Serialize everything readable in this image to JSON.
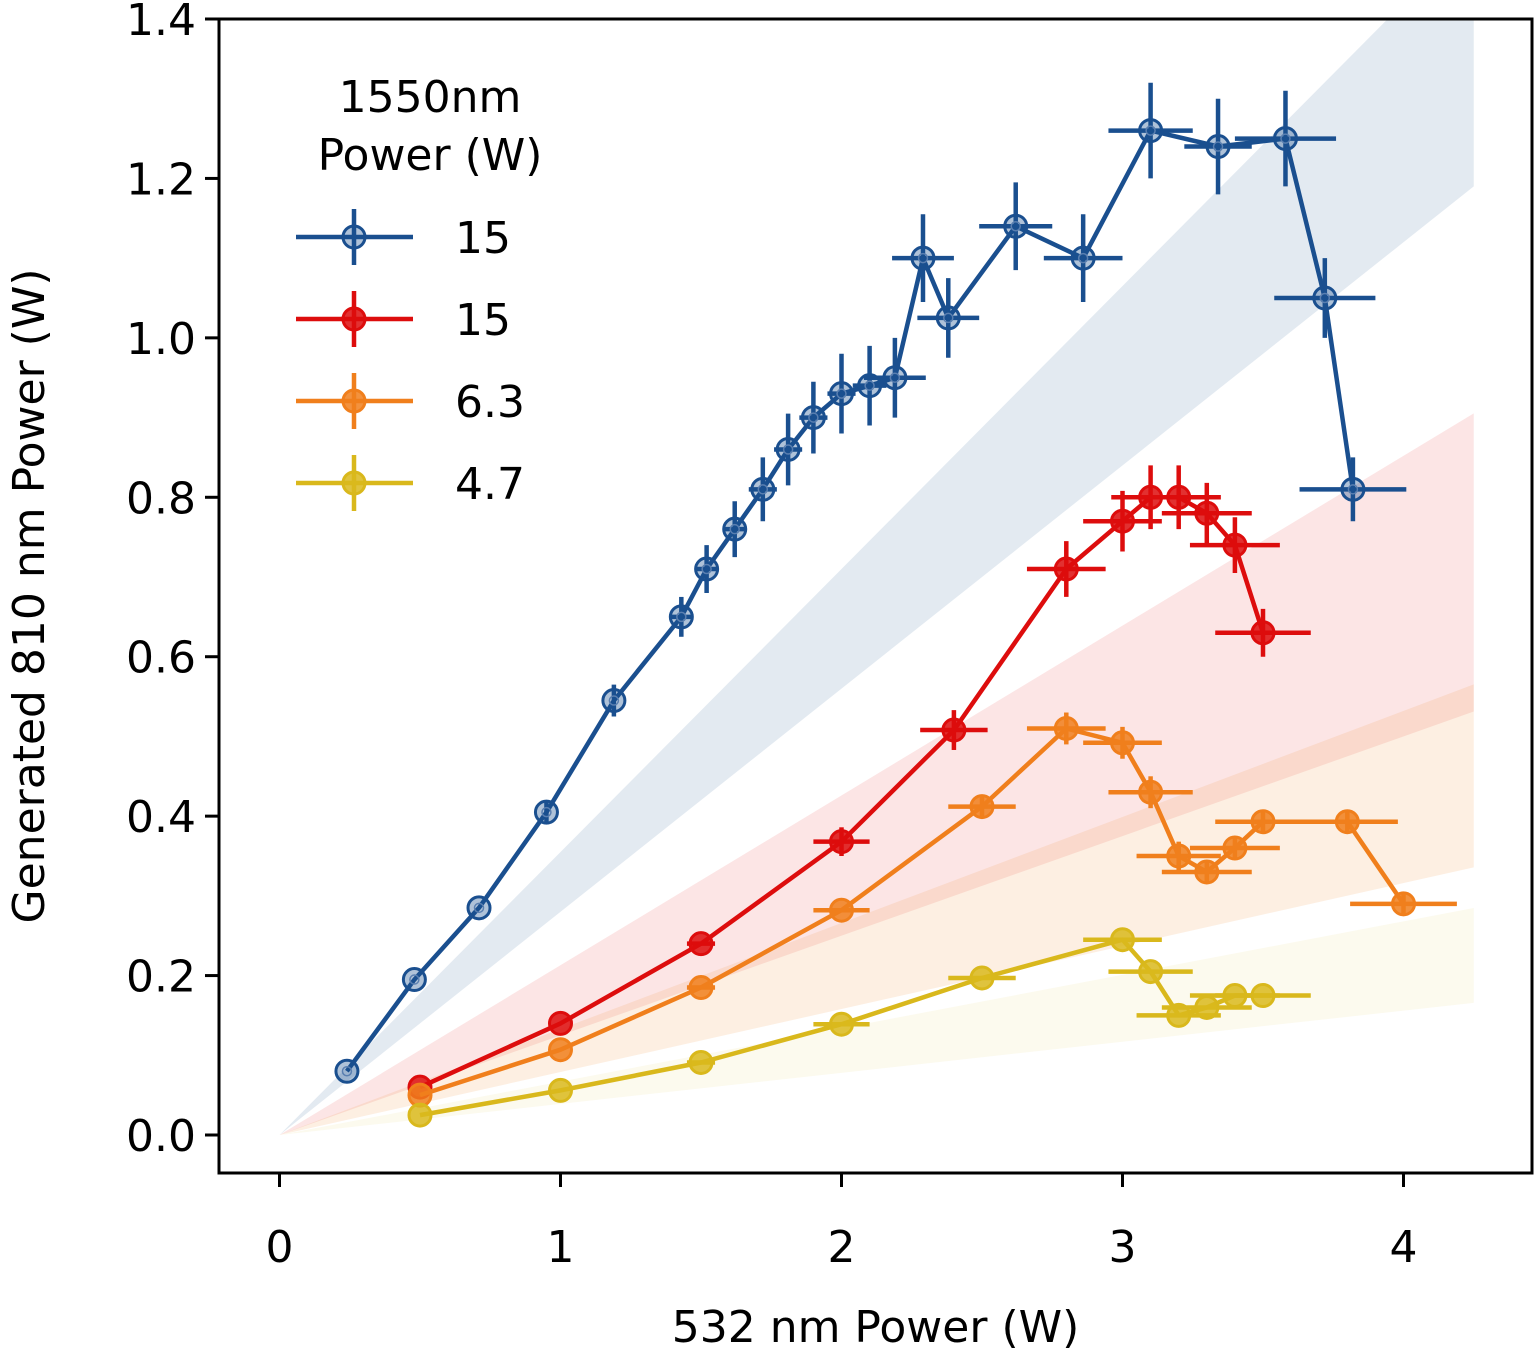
{
  "chart_data": {
    "type": "line",
    "title": "",
    "xlabel": "532 nm Power (W)",
    "ylabel": "Generated 810 nm Power (W)",
    "xlim": [
      -0.22,
      4.5
    ],
    "ylim": [
      0.0,
      1.4
    ],
    "xticks": [
      0,
      1,
      2,
      3,
      4
    ],
    "xtick_labels": [
      "0",
      "1",
      "2",
      "3",
      "4"
    ],
    "yticks": [
      0.0,
      0.2,
      0.4,
      0.6,
      0.8,
      1.0,
      1.2,
      1.4
    ],
    "ytick_labels": [
      "0.0",
      "0.2",
      "0.4",
      "0.6",
      "0.8",
      "1.0",
      "1.2",
      "1.4"
    ],
    "grid": false,
    "legend": {
      "title": "1550nm\nPower (W)",
      "placement": "top-left"
    },
    "series": [
      {
        "name": "15",
        "color": "#1a4f8f",
        "band_color": "#1a4f8f",
        "band": {
          "x_end": 4.25,
          "slope_low": 0.28,
          "slope_high": 0.355
        },
        "marker": "open",
        "points": [
          {
            "x": 0.24,
            "y": 0.08
          },
          {
            "x": 0.48,
            "y": 0.195
          },
          {
            "x": 0.71,
            "y": 0.285
          },
          {
            "x": 0.95,
            "y": 0.405,
            "yerr": 0.015
          },
          {
            "x": 1.19,
            "y": 0.545,
            "yerr": 0.02
          },
          {
            "x": 1.43,
            "y": 0.65,
            "xerr": 0.04,
            "yerr": 0.025
          },
          {
            "x": 1.52,
            "y": 0.71,
            "xerr": 0.04,
            "yerr": 0.03
          },
          {
            "x": 1.62,
            "y": 0.76,
            "xerr": 0.04,
            "yerr": 0.035
          },
          {
            "x": 1.72,
            "y": 0.81,
            "xerr": 0.05,
            "yerr": 0.04
          },
          {
            "x": 1.81,
            "y": 0.86,
            "xerr": 0.05,
            "yerr": 0.045
          },
          {
            "x": 1.9,
            "y": 0.9,
            "xerr": 0.05,
            "yerr": 0.045
          },
          {
            "x": 2.0,
            "y": 0.93,
            "xerr": 0.05,
            "yerr": 0.05
          },
          {
            "x": 2.1,
            "y": 0.94,
            "xerr": 0.06,
            "yerr": 0.05
          },
          {
            "x": 2.19,
            "y": 0.95,
            "xerr": 0.11,
            "yerr": 0.05
          },
          {
            "x": 2.29,
            "y": 1.1,
            "xerr": 0.11,
            "yerr": 0.055
          },
          {
            "x": 2.38,
            "y": 1.025,
            "xerr": 0.11,
            "yerr": 0.05
          },
          {
            "x": 2.62,
            "y": 1.14,
            "xerr": 0.13,
            "yerr": 0.055
          },
          {
            "x": 2.86,
            "y": 1.1,
            "xerr": 0.14,
            "yerr": 0.055
          },
          {
            "x": 3.1,
            "y": 1.26,
            "xerr": 0.15,
            "yerr": 0.06
          },
          {
            "x": 3.34,
            "y": 1.24,
            "xerr": 0.12,
            "yerr": 0.06
          },
          {
            "x": 3.58,
            "y": 1.25,
            "xerr": 0.18,
            "yerr": 0.06
          },
          {
            "x": 3.72,
            "y": 1.05,
            "xerr": 0.18,
            "yerr": 0.05
          },
          {
            "x": 3.82,
            "y": 0.81,
            "xerr": 0.19,
            "yerr": 0.04
          }
        ]
      },
      {
        "name": "15",
        "color": "#dd0d0d",
        "band_color": "#f07070",
        "band": {
          "x_end": 4.25,
          "slope_low": 0.125,
          "slope_high": 0.213
        },
        "marker": "filled",
        "points": [
          {
            "x": 0.5,
            "y": 0.06
          },
          {
            "x": 1.0,
            "y": 0.14
          },
          {
            "x": 1.5,
            "y": 0.24,
            "xerr": 0.05
          },
          {
            "x": 2.0,
            "y": 0.368,
            "xerr": 0.1,
            "yerr": 0.018
          },
          {
            "x": 2.4,
            "y": 0.508,
            "xerr": 0.12,
            "yerr": 0.025
          },
          {
            "x": 2.8,
            "y": 0.71,
            "xerr": 0.14,
            "yerr": 0.035
          },
          {
            "x": 3.0,
            "y": 0.77,
            "xerr": 0.14,
            "yerr": 0.038
          },
          {
            "x": 3.1,
            "y": 0.8,
            "xerr": 0.14,
            "yerr": 0.04
          },
          {
            "x": 3.2,
            "y": 0.8,
            "xerr": 0.15,
            "yerr": 0.04
          },
          {
            "x": 3.3,
            "y": 0.78,
            "xerr": 0.16,
            "yerr": 0.038
          },
          {
            "x": 3.4,
            "y": 0.74,
            "xerr": 0.16,
            "yerr": 0.035
          },
          {
            "x": 3.5,
            "y": 0.63,
            "xerr": 0.17,
            "yerr": 0.03
          }
        ]
      },
      {
        "name": "6.3",
        "color": "#f07f1c",
        "band_color": "#f5a560",
        "band": {
          "x_end": 4.25,
          "slope_low": 0.079,
          "slope_high": 0.133
        },
        "marker": "filled",
        "points": [
          {
            "x": 0.5,
            "y": 0.05
          },
          {
            "x": 1.0,
            "y": 0.107
          },
          {
            "x": 1.5,
            "y": 0.185,
            "xerr": 0.05
          },
          {
            "x": 2.0,
            "y": 0.282,
            "xerr": 0.1
          },
          {
            "x": 2.5,
            "y": 0.412,
            "xerr": 0.12,
            "yerr": 0.015
          },
          {
            "x": 2.8,
            "y": 0.51,
            "xerr": 0.14,
            "yerr": 0.02
          },
          {
            "x": 3.0,
            "y": 0.492,
            "xerr": 0.14,
            "yerr": 0.02
          },
          {
            "x": 3.1,
            "y": 0.43,
            "xerr": 0.15,
            "yerr": 0.02
          },
          {
            "x": 3.2,
            "y": 0.35,
            "xerr": 0.15,
            "yerr": 0.018
          },
          {
            "x": 3.3,
            "y": 0.33,
            "xerr": 0.16,
            "yerr": 0.015
          },
          {
            "x": 3.4,
            "y": 0.36,
            "xerr": 0.16,
            "yerr": 0.015
          },
          {
            "x": 3.5,
            "y": 0.393,
            "xerr": 0.17,
            "yerr": 0.015
          },
          {
            "x": 3.8,
            "y": 0.393,
            "xerr": 0.18,
            "yerr": 0.015
          },
          {
            "x": 4.0,
            "y": 0.29,
            "xerr": 0.19,
            "yerr": 0.012
          }
        ]
      },
      {
        "name": "4.7",
        "color": "#d9b81c",
        "band_color": "#eee4a0",
        "band": {
          "x_end": 4.25,
          "slope_low": 0.039,
          "slope_high": 0.067
        },
        "marker": "filled",
        "points": [
          {
            "x": 0.5,
            "y": 0.025
          },
          {
            "x": 1.0,
            "y": 0.056
          },
          {
            "x": 1.5,
            "y": 0.091,
            "xerr": 0.05
          },
          {
            "x": 2.0,
            "y": 0.139,
            "xerr": 0.1
          },
          {
            "x": 2.5,
            "y": 0.197,
            "xerr": 0.12
          },
          {
            "x": 3.0,
            "y": 0.245,
            "xerr": 0.14
          },
          {
            "x": 3.1,
            "y": 0.205,
            "xerr": 0.15
          },
          {
            "x": 3.2,
            "y": 0.15,
            "xerr": 0.15
          },
          {
            "x": 3.3,
            "y": 0.16,
            "xerr": 0.16
          },
          {
            "x": 3.4,
            "y": 0.175,
            "xerr": 0.16
          },
          {
            "x": 3.5,
            "y": 0.175,
            "xerr": 0.17
          }
        ]
      }
    ]
  }
}
